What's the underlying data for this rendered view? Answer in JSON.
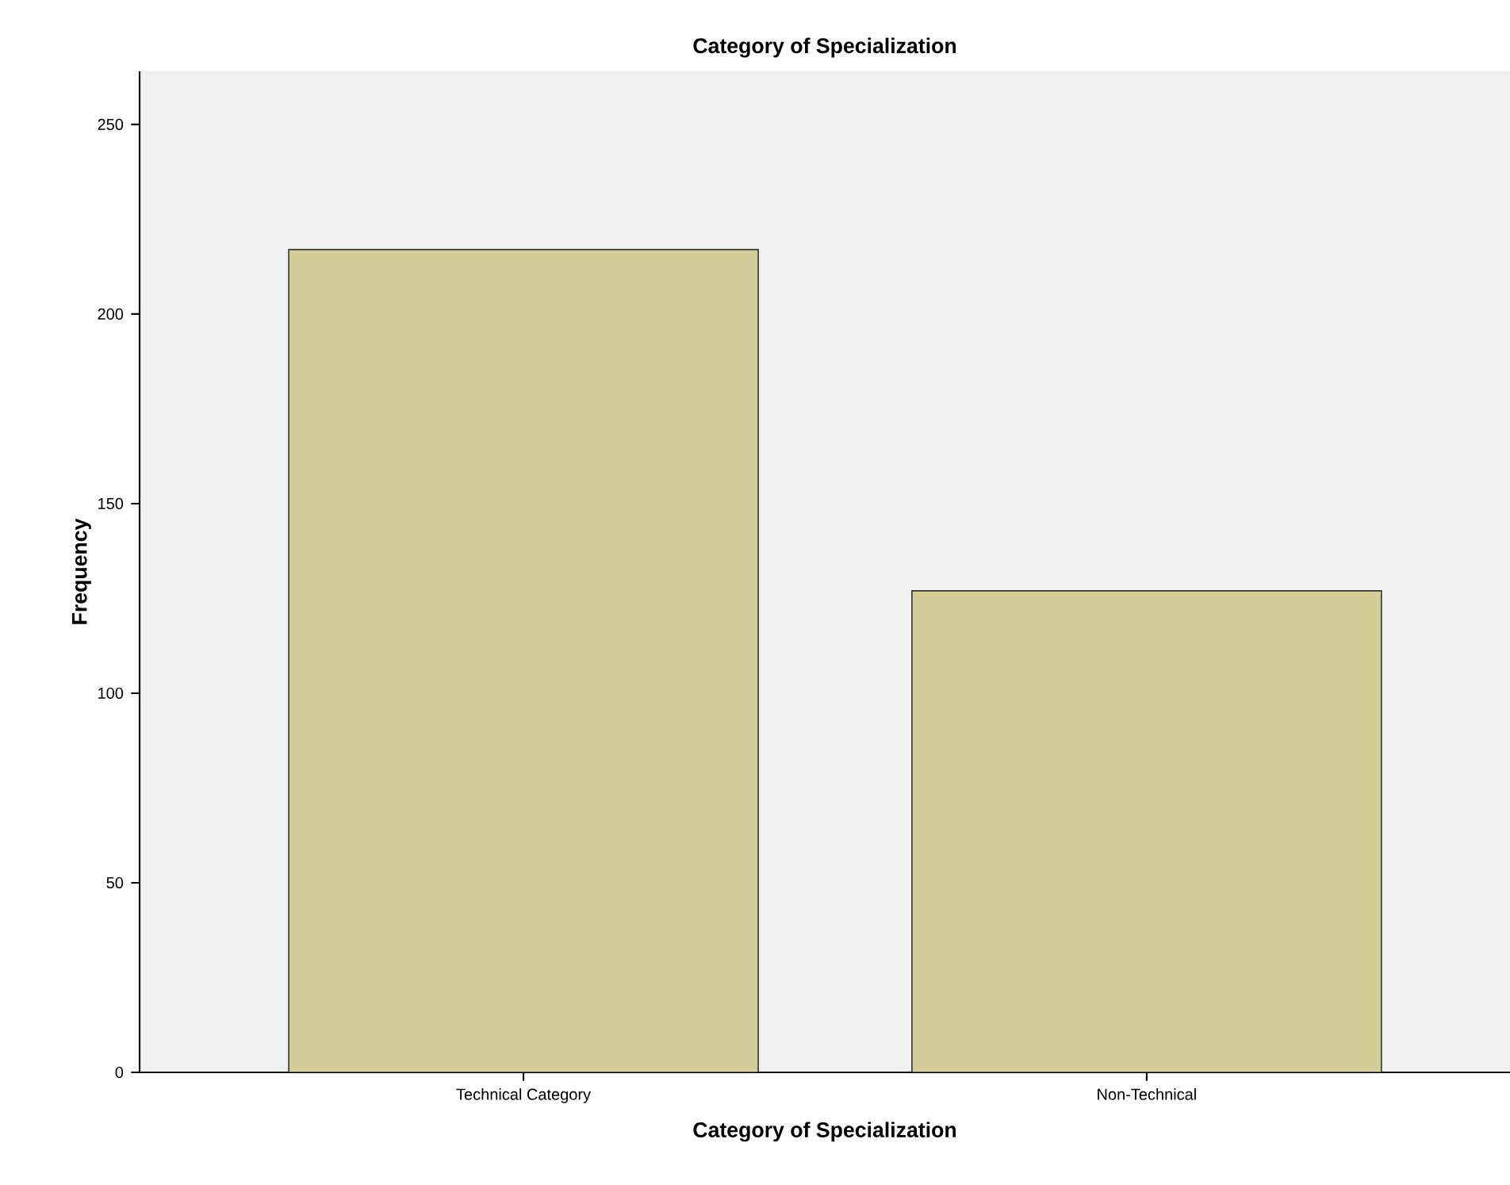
{
  "chart_data": {
    "type": "bar",
    "title": "Category of Specialization",
    "xlabel": "Category of Specialization",
    "ylabel": "Frequency",
    "categories": [
      "Technical Category",
      "Non-Technical"
    ],
    "values": [
      217,
      127
    ],
    "color": "#d3ce97",
    "ylim": [
      0,
      264
    ],
    "yticks": [
      0,
      50,
      100,
      150,
      200,
      250
    ],
    "grid": false
  }
}
